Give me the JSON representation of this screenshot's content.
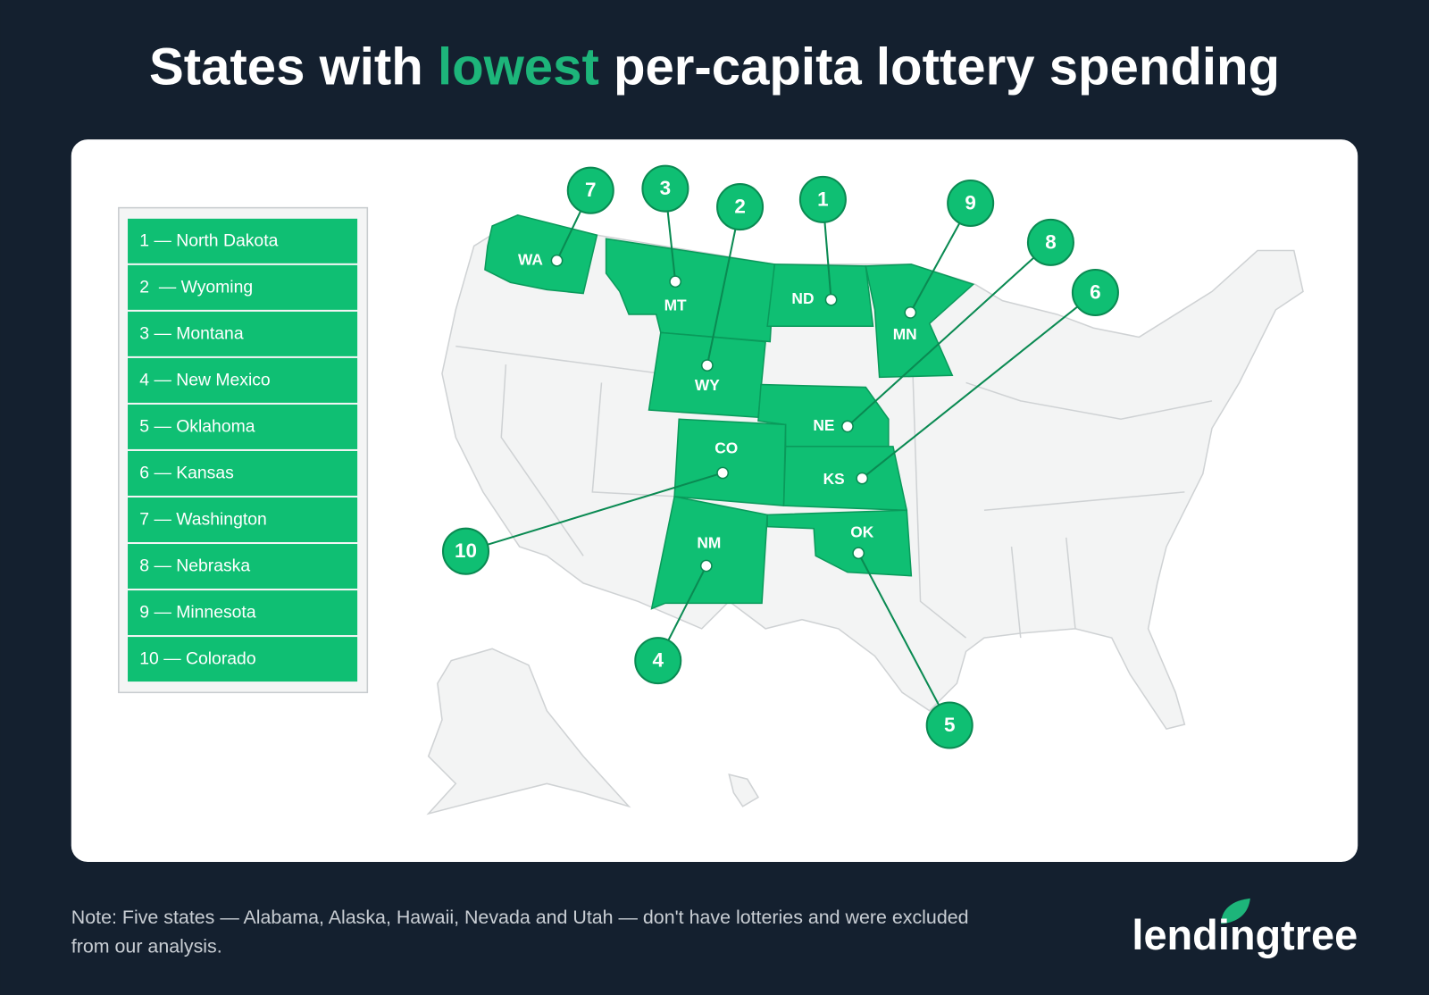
{
  "header": {
    "title": {
      "before": "States with ",
      "highlight": "lowest",
      "after": " per-capita lottery spending"
    }
  },
  "legend": {
    "items": [
      "1 — North Dakota",
      "2  — Wyoming",
      "3 — Montana",
      "4 — New Mexico",
      "5 — Oklahoma",
      "6 — Kansas",
      "7 — Washington",
      "8 — Nebraska",
      "9 — Minnesota",
      "10 — Colorado"
    ]
  },
  "map": {
    "markers": [
      {
        "state": "WA",
        "rank": "7"
      },
      {
        "state": "MT",
        "rank": "3"
      },
      {
        "state": "WY",
        "rank": "2"
      },
      {
        "state": "ND",
        "rank": "1"
      },
      {
        "state": "MN",
        "rank": "9"
      },
      {
        "state": "NE",
        "rank": "8"
      },
      {
        "state": "KS",
        "rank": "6"
      },
      {
        "state": "CO",
        "rank": "10"
      },
      {
        "state": "NM",
        "rank": "4"
      },
      {
        "state": "OK",
        "rank": "5"
      }
    ]
  },
  "footer": {
    "note": [
      "Note: Five states — Alabama, Alaska, Hawaii, Nevada and Utah — don't have lotteries and were excluded",
      "from our analysis."
    ],
    "logo": "lendingtree"
  }
}
